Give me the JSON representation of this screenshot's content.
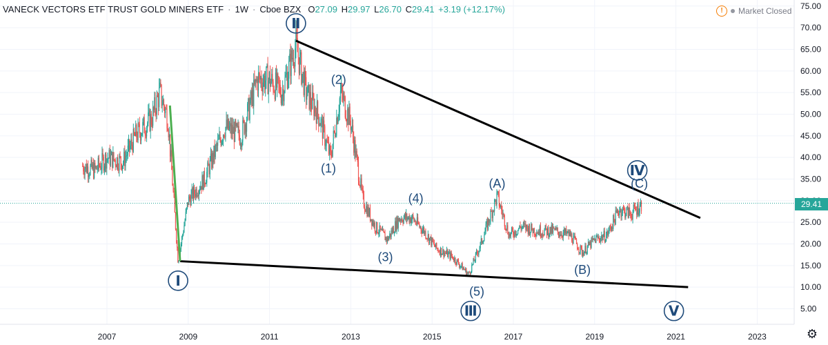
{
  "header": {
    "symbol": "VANECK VECTORS ETF TRUST GOLD MINERS ETF",
    "interval": "1W",
    "exchange": "Cboe BZX",
    "open_label": "O",
    "open": "27.09",
    "high_label": "H",
    "high": "29.97",
    "low_label": "L",
    "low": "26.70",
    "close_label": "C",
    "close": "29.41",
    "change": "+3.19 (+12.17%)"
  },
  "market_status": "Market Closed",
  "colors": {
    "up": "#26a69a",
    "down": "#ef5350",
    "wave_label": "#1e4a7a",
    "accent_green": "#4caf50"
  },
  "chart_data": {
    "type": "candlestick",
    "y_axis": {
      "ticks": [
        "5.00",
        "10.00",
        "15.00",
        "20.00",
        "25.00",
        "30.00",
        "35.00",
        "40.00",
        "45.00",
        "50.00",
        "55.00",
        "60.00",
        "65.00",
        "70.00",
        "75.00"
      ],
      "range": [
        0,
        78
      ]
    },
    "x_axis": {
      "ticks": [
        "2007",
        "2009",
        "2011",
        "2013",
        "2015",
        "2017",
        "2019",
        "2021",
        "2023"
      ]
    },
    "last_price": "29.41",
    "price_path": [
      [
        "2006.4",
        38
      ],
      [
        "2006.7",
        37
      ],
      [
        "2007.0",
        40
      ],
      [
        "2007.4",
        39
      ],
      [
        "2007.7",
        45
      ],
      [
        "2008.1",
        49
      ],
      [
        "2008.3",
        55
      ],
      [
        "2008.5",
        49
      ],
      [
        "2008.75",
        16
      ],
      [
        "2009.0",
        30
      ],
      [
        "2009.4",
        35
      ],
      [
        "2009.9",
        47
      ],
      [
        "2010.3",
        45
      ],
      [
        "2010.7",
        58
      ],
      [
        "2011.0",
        58
      ],
      [
        "2011.3",
        55
      ],
      [
        "2011.65",
        66
      ],
      [
        "2011.9",
        55
      ],
      [
        "2012.2",
        50
      ],
      [
        "2012.5",
        40
      ],
      [
        "2012.75",
        55
      ],
      [
        "2013.0",
        48
      ],
      [
        "2013.3",
        30
      ],
      [
        "2013.6",
        24
      ],
      [
        "2013.9",
        21
      ],
      [
        "2014.2",
        26
      ],
      [
        "2014.5",
        26
      ],
      [
        "2014.8",
        23
      ],
      [
        "2015.1",
        19
      ],
      [
        "2015.5",
        17
      ],
      [
        "2015.9",
        13
      ],
      [
        "2016.2",
        20
      ],
      [
        "2016.6",
        31
      ],
      [
        "2016.9",
        22
      ],
      [
        "2017.2",
        24
      ],
      [
        "2017.6",
        23
      ],
      [
        "2018.0",
        23
      ],
      [
        "2018.4",
        22
      ],
      [
        "2018.7",
        18
      ],
      [
        "2019.0",
        21
      ],
      [
        "2019.3",
        22
      ],
      [
        "2019.6",
        28
      ],
      [
        "2019.9",
        27
      ],
      [
        "2020.15",
        29
      ]
    ],
    "trendlines": [
      {
        "x1": "2011.65",
        "y1": 67,
        "x2": "2021.6",
        "y2": 26
      },
      {
        "x1": "2008.8",
        "y1": 16,
        "x2": "2021.3",
        "y2": 10
      },
      {
        "x1": "2008.55",
        "y1": 52,
        "x2": "2008.8",
        "y2": 16
      }
    ],
    "wave_labels": [
      {
        "text": "Ⅰ",
        "x": "2008.75",
        "y": 11.5,
        "circled": true
      },
      {
        "text": "Ⅱ",
        "x": "2011.65",
        "y": 71,
        "circled": true
      },
      {
        "text": "Ⅲ",
        "x": "2015.95",
        "y": 4.5,
        "circled": true
      },
      {
        "text": "Ⅳ",
        "x": "2020.05",
        "y": 37,
        "circled": true
      },
      {
        "text": "Ⅴ",
        "x": "2020.95",
        "y": 4.5,
        "circled": true
      },
      {
        "text": "(1)",
        "x": "2012.45",
        "y": 37.5,
        "circled": false
      },
      {
        "text": "(2)",
        "x": "2012.7",
        "y": 58,
        "circled": false
      },
      {
        "text": "(3)",
        "x": "2013.85",
        "y": 17,
        "circled": false
      },
      {
        "text": "(4)",
        "x": "2014.6",
        "y": 30.5,
        "circled": false
      },
      {
        "text": "(5)",
        "x": "2016.1",
        "y": 9,
        "circled": false
      },
      {
        "text": "(A)",
        "x": "2016.6",
        "y": 34,
        "circled": false
      },
      {
        "text": "(B)",
        "x": "2018.7",
        "y": 14,
        "circled": false
      },
      {
        "text": "(C)",
        "x": "2020.1",
        "y": 34,
        "circled": false
      }
    ]
  }
}
